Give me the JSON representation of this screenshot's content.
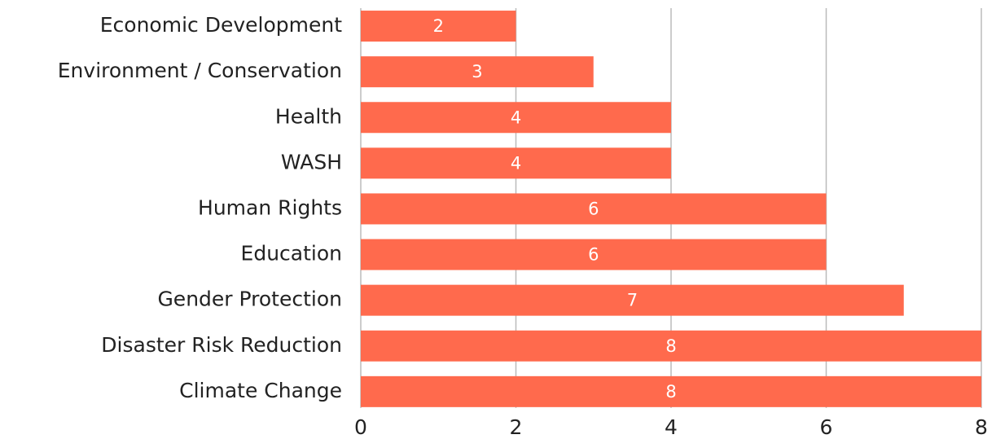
{
  "chart_data": {
    "type": "bar",
    "orientation": "horizontal",
    "categories": [
      "Economic Development",
      "Environment / Conservation",
      "Health",
      "WASH",
      "Human Rights",
      "Education",
      "Gender Protection",
      "Disaster Risk Reduction",
      "Climate Change"
    ],
    "values": [
      2,
      3,
      4,
      4,
      6,
      6,
      7,
      8,
      8
    ],
    "color": "#ff6a4d",
    "xlim": [
      0,
      8
    ],
    "xticks": [
      0,
      2,
      4,
      6,
      8
    ],
    "grid": true,
    "value_labels_shown": true
  }
}
